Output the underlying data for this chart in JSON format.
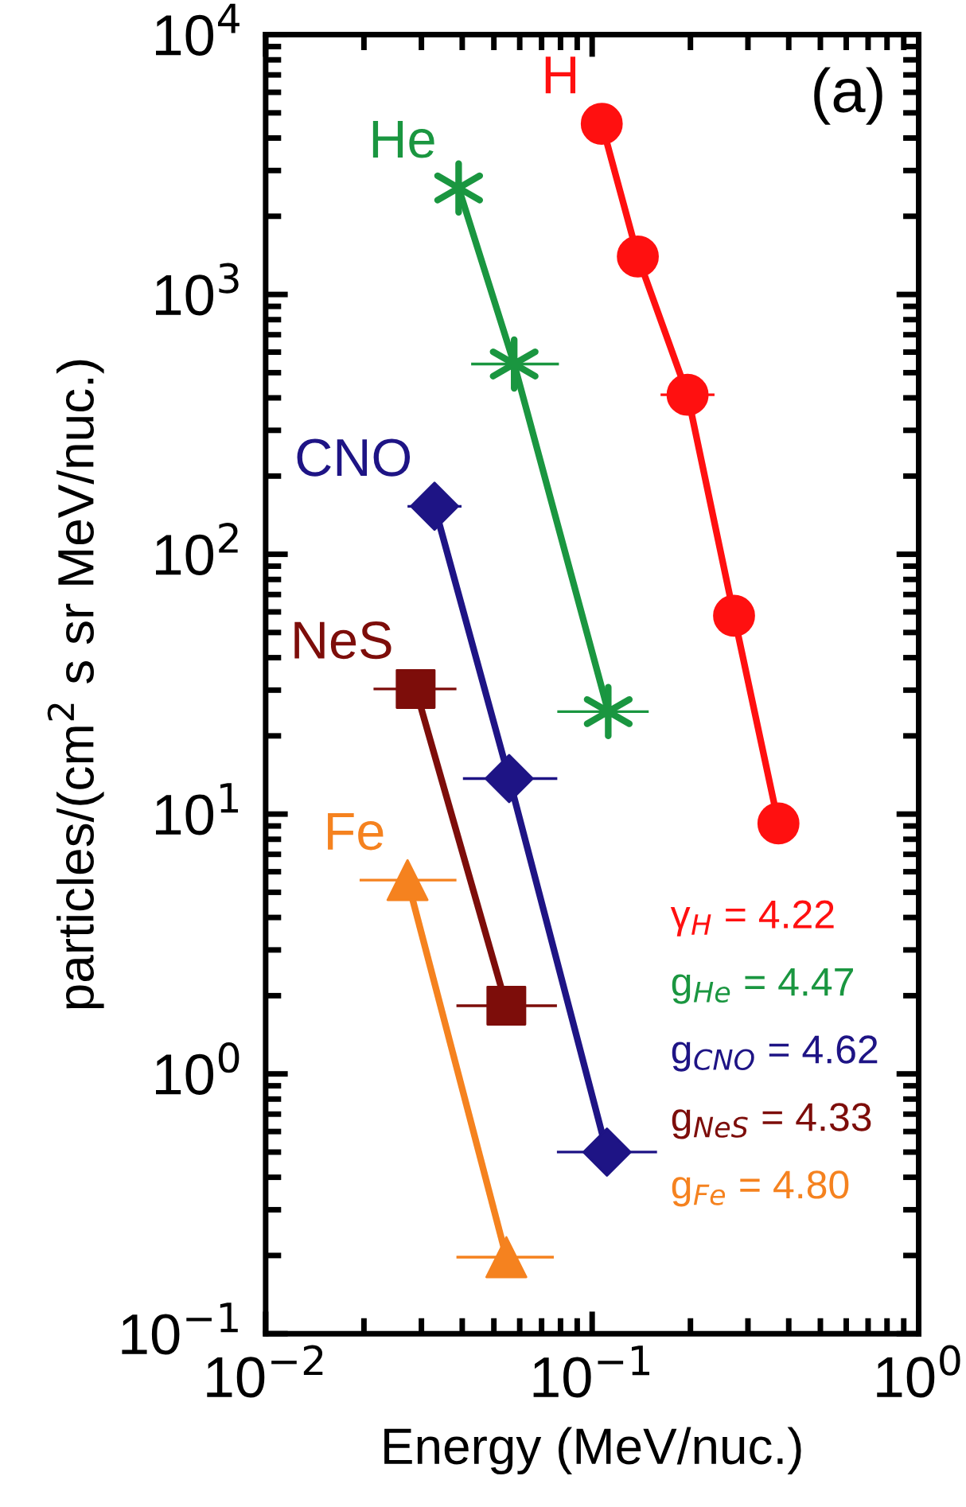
{
  "chart_data": {
    "type": "line",
    "xlabel": "Energy (MeV/nuc.)",
    "ylabel": "particles/(cm$^{2}$ s sr MeV/nuc.)",
    "log": "xy",
    "xlim": [
      0.01,
      1
    ],
    "ylim": [
      0.1,
      10000
    ],
    "xticks": [
      {
        "value": 0.01,
        "label": "10$^{−2}$"
      },
      {
        "value": 0.1,
        "label": "10$^{−1}$"
      },
      {
        "value": 1,
        "label": "10$^{0}$"
      }
    ],
    "yticks": [
      {
        "value": 0.1,
        "label": "10$^{−1}$"
      },
      {
        "value": 1,
        "label": "10$^{0}$"
      },
      {
        "value": 10,
        "label": "10$^{1}$"
      },
      {
        "value": 100,
        "label": "10$^{2}$"
      },
      {
        "value": 1000,
        "label": "10$^{3}$"
      },
      {
        "value": 10000,
        "label": "10$^{4}$"
      }
    ],
    "grid": false,
    "legend": false,
    "line_style": "solid",
    "series": [
      {
        "name": "H",
        "color": "#ff1010",
        "marker": "circle",
        "x": [
          0.107,
          0.138,
          0.196,
          0.272,
          0.372
        ],
        "values": [
          4540,
          1400,
          411,
          58,
          9.2
        ],
        "xerrors": [
          null,
          null,
          [
            0.162,
            0.237
          ],
          null,
          null
        ]
      },
      {
        "name": "He",
        "color": "#1a9640",
        "marker": "cross",
        "x": [
          0.039,
          0.0577,
          0.112
        ],
        "values": [
          2570,
          540,
          24.8
        ],
        "xerrors": [
          null,
          [
            0.0426,
            0.0791
          ],
          [
            0.0782,
            0.149
          ]
        ]
      },
      {
        "name": "CNO",
        "color": "#1e1485",
        "marker": "diamond",
        "x": [
          0.0329,
          0.0557,
          0.111
        ],
        "values": [
          153,
          13.7,
          0.5
        ],
        "xerrors": [
          [
            0.0272,
            0.0398
          ],
          [
            0.0402,
            0.0782
          ],
          [
            0.078,
            0.158
          ]
        ]
      },
      {
        "name": "NeS",
        "color": "#7d0d0a",
        "marker": "square",
        "x": [
          0.0288,
          0.0546
        ],
        "values": [
          30.3,
          1.83
        ],
        "xerrors": [
          [
            0.0214,
            0.0384
          ],
          [
            0.0384,
            0.078
          ]
        ]
      },
      {
        "name": "Fe",
        "color": "#f5821f",
        "marker": "triangle",
        "x": [
          0.0272,
          0.0546
        ],
        "values": [
          5.57,
          0.197
        ],
        "xerrors": [
          [
            0.0194,
            0.0384
          ],
          [
            0.0384,
            0.0763
          ]
        ]
      }
    ],
    "annotations": [
      "(a)",
      "γ$_{H}$ = 4.22",
      "g$_{He}$ = 4.47",
      "g$_{CNO}$ = 4.62",
      "g$_{NeS}$ = 4.33",
      "g$_{Fe}$ = 4.80"
    ]
  }
}
